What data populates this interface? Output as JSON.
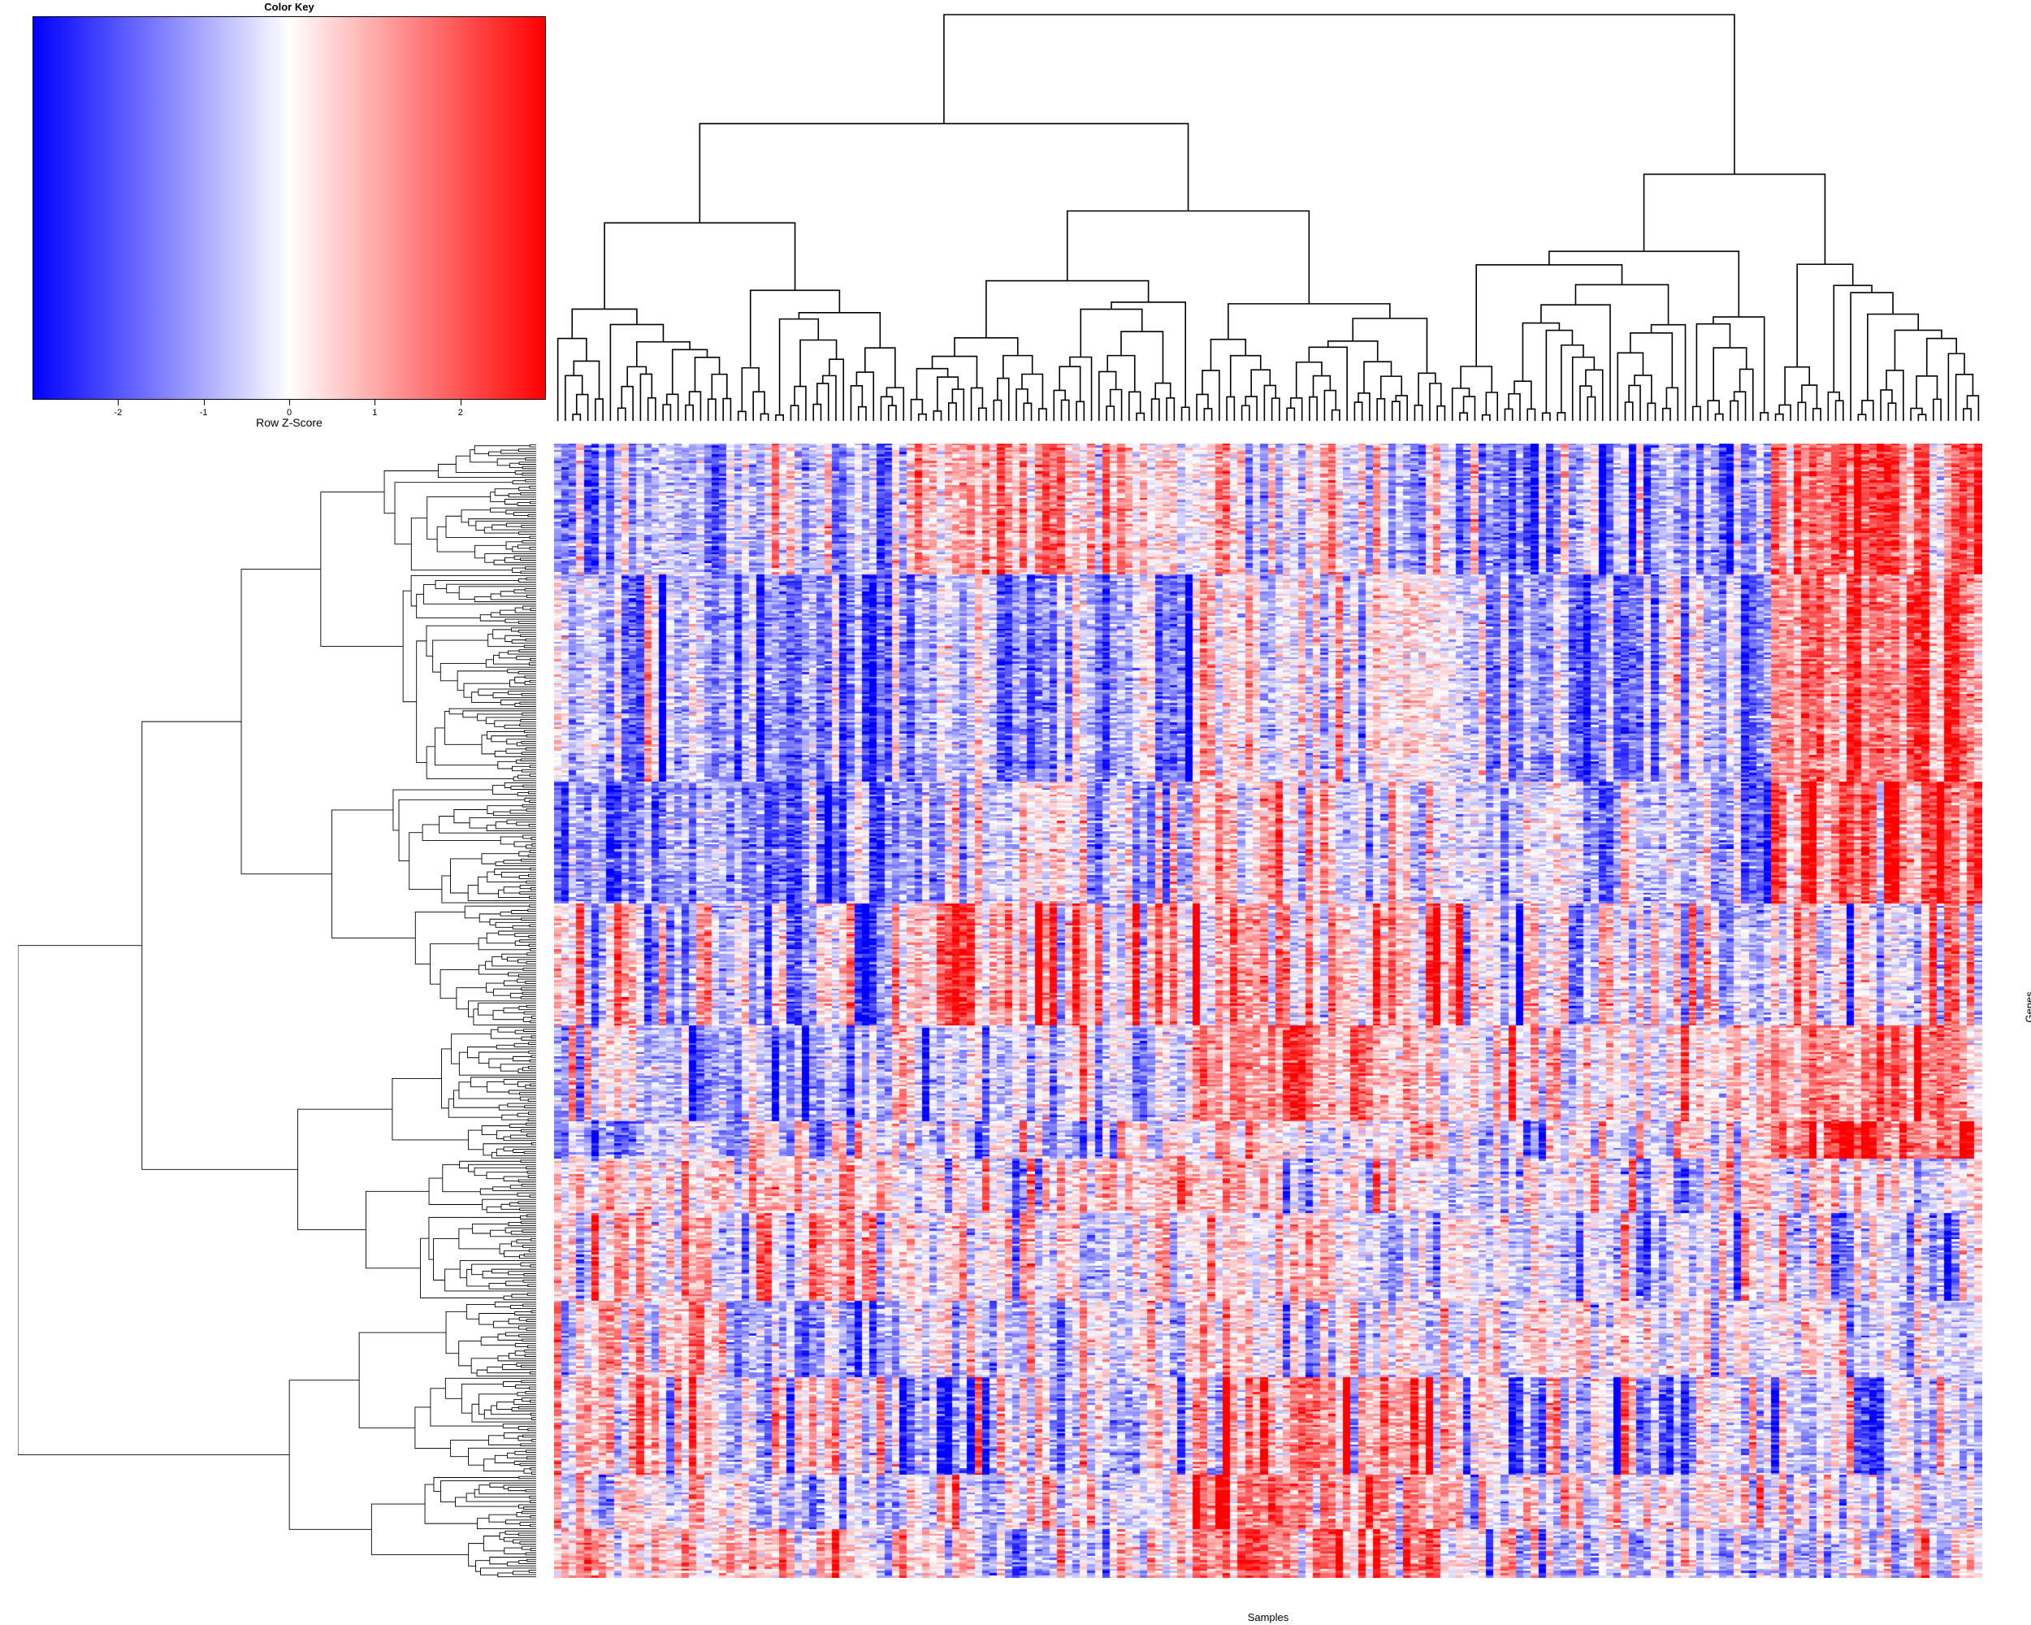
{
  "chart_data": {
    "type": "heatmap",
    "title": "",
    "xlabel": "Samples",
    "ylabel": "Genes",
    "row_dendrogram": true,
    "column_dendrogram": true,
    "color_key": {
      "title": "Color Key",
      "label": "Row Z-Score",
      "range": [
        -3,
        3
      ],
      "ticks": [
        -2,
        -1,
        0,
        1,
        2
      ],
      "tick_labels": [
        "-2",
        "-1",
        "0",
        "1",
        "2"
      ],
      "colors": [
        "#0000ff",
        "#ffffff",
        "#ff0000"
      ]
    },
    "n_samples": 190,
    "n_genes": 520,
    "column_group_sizes": [
      24,
      23,
      38,
      34,
      43,
      28
    ],
    "row_block_sizes": [
      60,
      95,
      56,
      56,
      44,
      17,
      25,
      40,
      35,
      45,
      25,
      22
    ],
    "block_means": [
      [
        -0.9,
        -1.0,
        0.9,
        -0.2,
        -1.2,
        1.6
      ],
      [
        -1.1,
        -1.3,
        -0.8,
        0.3,
        -1.0,
        1.7
      ],
      [
        -1.0,
        -1.5,
        -0.6,
        0.1,
        -0.8,
        1.7
      ],
      [
        -0.2,
        -0.8,
        1.0,
        0.6,
        -0.2,
        0.3
      ],
      [
        -0.8,
        -0.7,
        -0.6,
        1.0,
        0.0,
        1.4
      ],
      [
        -0.7,
        -0.5,
        -0.5,
        0.4,
        0.0,
        2.1
      ],
      [
        0.6,
        0.4,
        0.2,
        -0.2,
        -0.4,
        -0.3
      ],
      [
        0.2,
        0.2,
        0.0,
        -0.1,
        -0.3,
        -0.4
      ],
      [
        0.3,
        -0.8,
        -0.3,
        0.3,
        0.0,
        0.0
      ],
      [
        0.4,
        0.2,
        -0.5,
        1.4,
        -0.4,
        -0.5
      ],
      [
        0.0,
        -0.3,
        0.0,
        1.6,
        0.0,
        -0.3
      ],
      [
        0.6,
        0.8,
        -0.4,
        1.6,
        -0.5,
        -0.3
      ]
    ],
    "column_noise": 0.9,
    "cell_noise": 0.55
  }
}
